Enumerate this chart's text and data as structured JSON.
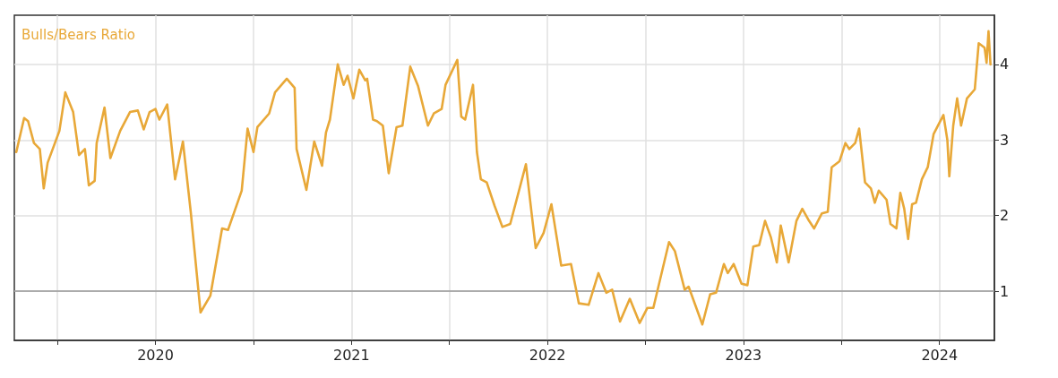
{
  "chart_data": {
    "type": "line",
    "xlim": [
      2019.28,
      2024.28
    ],
    "xticks": [
      {
        "value": 2019.5,
        "label": null
      },
      {
        "value": 2020,
        "label": "2020"
      },
      {
        "value": 2020.5,
        "label": null
      },
      {
        "value": 2021,
        "label": "2021"
      },
      {
        "value": 2021.5,
        "label": null
      },
      {
        "value": 2022,
        "label": "2022"
      },
      {
        "value": 2022.5,
        "label": null
      },
      {
        "value": 2023,
        "label": "2023"
      },
      {
        "value": 2023.5,
        "label": null
      },
      {
        "value": 2024,
        "label": "2024"
      }
    ],
    "ylim": [
      0.35,
      4.65
    ],
    "yticks": [
      1,
      2,
      3,
      4
    ],
    "grid": true,
    "legend": "top left",
    "marker": "none",
    "line_style": "solid",
    "ref_lines": [
      {
        "axis": "y",
        "value": 1,
        "color": "#999999"
      }
    ],
    "series": [
      {
        "name": "Bulls/Bears Ratio",
        "color": "#e8a838",
        "x": [
          2019.29,
          2019.33,
          2019.35,
          2019.38,
          2019.41,
          2019.43,
          2019.45,
          2019.51,
          2019.54,
          2019.58,
          2019.61,
          2019.64,
          2019.66,
          2019.69,
          2019.7,
          2019.74,
          2019.77,
          2019.82,
          2019.87,
          2019.91,
          2019.94,
          2019.97,
          2020.0,
          2020.02,
          2020.06,
          2020.1,
          2020.14,
          2020.18,
          2020.23,
          2020.28,
          2020.34,
          2020.37,
          2020.44,
          2020.47,
          2020.5,
          2020.52,
          2020.58,
          2020.61,
          2020.67,
          2020.71,
          2020.72,
          2020.77,
          2020.81,
          2020.85,
          2020.87,
          2020.89,
          2020.93,
          2020.96,
          2020.98,
          2021.01,
          2021.04,
          2021.07,
          2021.08,
          2021.11,
          2021.13,
          2021.16,
          2021.19,
          2021.23,
          2021.26,
          2021.3,
          2021.34,
          2021.39,
          2021.42,
          2021.46,
          2021.48,
          2021.54,
          2021.56,
          2021.58,
          2021.62,
          2021.64,
          2021.66,
          2021.69,
          2021.73,
          2021.77,
          2021.81,
          2021.89,
          2021.92,
          2021.94,
          2021.98,
          2022.02,
          2022.07,
          2022.12,
          2022.16,
          2022.21,
          2022.26,
          2022.3,
          2022.33,
          2022.37,
          2022.42,
          2022.47,
          2022.51,
          2022.54,
          2022.62,
          2022.65,
          2022.7,
          2022.72,
          2022.79,
          2022.83,
          2022.86,
          2022.9,
          2022.92,
          2022.95,
          2022.99,
          2023.02,
          2023.05,
          2023.08,
          2023.11,
          2023.14,
          2023.17,
          2023.19,
          2023.23,
          2023.27,
          2023.3,
          2023.33,
          2023.36,
          2023.4,
          2023.43,
          2023.45,
          2023.49,
          2023.52,
          2023.54,
          2023.57,
          2023.59,
          2023.62,
          2023.65,
          2023.67,
          2023.69,
          2023.73,
          2023.75,
          2023.78,
          2023.8,
          2023.82,
          2023.84,
          2023.86,
          2023.88,
          2023.91,
          2023.94,
          2023.97,
          2024.02,
          2024.04,
          2024.05,
          2024.07,
          2024.09,
          2024.11,
          2024.14,
          2024.18,
          2024.2,
          2024.23,
          2024.24,
          2024.25,
          2024.26
        ],
        "values": [
          2.84,
          3.29,
          3.25,
          2.96,
          2.88,
          2.36,
          2.7,
          3.12,
          3.63,
          3.37,
          2.8,
          2.88,
          2.4,
          2.46,
          2.96,
          3.43,
          2.76,
          3.12,
          3.37,
          3.39,
          3.14,
          3.37,
          3.41,
          3.27,
          3.47,
          2.48,
          2.98,
          2.05,
          0.72,
          0.94,
          1.83,
          1.81,
          2.33,
          3.15,
          2.84,
          3.17,
          3.35,
          3.63,
          3.81,
          3.69,
          2.88,
          2.34,
          2.98,
          2.66,
          3.1,
          3.27,
          4.0,
          3.73,
          3.85,
          3.55,
          3.93,
          3.79,
          3.81,
          3.27,
          3.25,
          3.19,
          2.56,
          3.17,
          3.19,
          3.97,
          3.71,
          3.19,
          3.35,
          3.41,
          3.73,
          4.06,
          3.31,
          3.27,
          3.73,
          2.84,
          2.48,
          2.44,
          2.13,
          1.85,
          1.89,
          2.68,
          2.01,
          1.57,
          1.77,
          2.15,
          1.34,
          1.36,
          0.84,
          0.82,
          1.24,
          0.98,
          1.02,
          0.6,
          0.9,
          0.58,
          0.78,
          0.78,
          1.65,
          1.53,
          1.02,
          1.06,
          0.56,
          0.96,
          0.98,
          1.36,
          1.24,
          1.36,
          1.1,
          1.08,
          1.59,
          1.61,
          1.93,
          1.71,
          1.38,
          1.87,
          1.38,
          1.93,
          2.09,
          1.95,
          1.83,
          2.03,
          2.05,
          2.64,
          2.72,
          2.96,
          2.88,
          2.96,
          3.15,
          2.44,
          2.36,
          2.17,
          2.33,
          2.21,
          1.89,
          1.83,
          2.3,
          2.09,
          1.69,
          2.15,
          2.17,
          2.48,
          2.64,
          3.08,
          3.33,
          3.0,
          2.52,
          3.19,
          3.55,
          3.19,
          3.55,
          3.67,
          4.28,
          4.22,
          4.02,
          4.44,
          4.0
        ]
      }
    ]
  }
}
